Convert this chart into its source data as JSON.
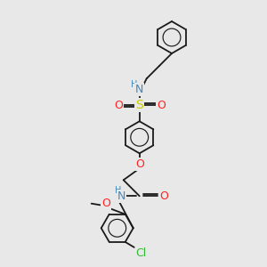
{
  "bg_color": "#e8e8e8",
  "bond_color": "#1a1a1a",
  "atom_colors": {
    "N": "#4488bb",
    "O": "#ff2222",
    "S": "#cccc00",
    "Cl": "#33bb33",
    "H": "#4488bb"
  },
  "bond_lw": 1.3,
  "ring_r": 18,
  "font_size_atom": 8,
  "font_size_small": 7
}
